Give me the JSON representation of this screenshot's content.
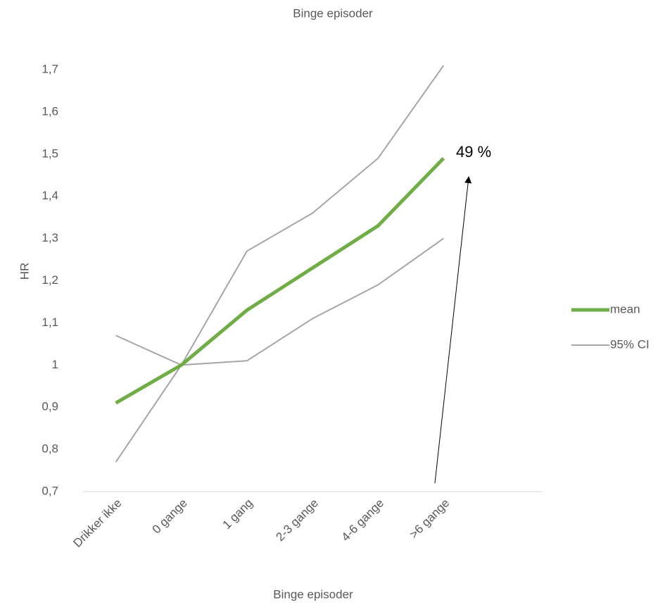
{
  "chart_data": {
    "type": "line",
    "title": "Binge episoder",
    "x_label": "Binge episoder",
    "y_label": "HR",
    "categories": [
      "Drikker ikke",
      "0 gange",
      "1 gang",
      "2-3 gange",
      "4-6 gange",
      ">6 gange",
      null
    ],
    "series": [
      {
        "name": "mean",
        "color": "#70ad47",
        "values": [
          0.91,
          1.0,
          1.13,
          1.23,
          1.33,
          1.49,
          null
        ]
      }
    ],
    "ci": {
      "name": "95% CI",
      "color": "#a6a6a6",
      "upper": [
        1.07,
        1.0,
        1.27,
        1.36,
        1.49,
        1.71,
        null
      ],
      "lower": [
        0.77,
        1.0,
        1.01,
        1.11,
        1.19,
        1.3,
        null
      ]
    },
    "ylim": [
      0.7,
      1.7
    ],
    "yticks": [
      {
        "value": 0.7,
        "label": "0,7"
      },
      {
        "value": 0.8,
        "label": "0,8"
      },
      {
        "value": 0.9,
        "label": "0,9"
      },
      1,
      {
        "value": 1.1,
        "label": "1,1"
      },
      {
        "value": 1.2,
        "label": "1,2"
      },
      {
        "value": 1.3,
        "label": "1,3"
      },
      {
        "value": 1.4,
        "label": "1,4"
      },
      {
        "value": 1.5,
        "label": "1,5"
      },
      {
        "value": 1.6,
        "label": "1,6"
      },
      {
        "value": 1.7,
        "label": "1,7"
      }
    ],
    "annotation": "49 %",
    "legend": "right"
  }
}
